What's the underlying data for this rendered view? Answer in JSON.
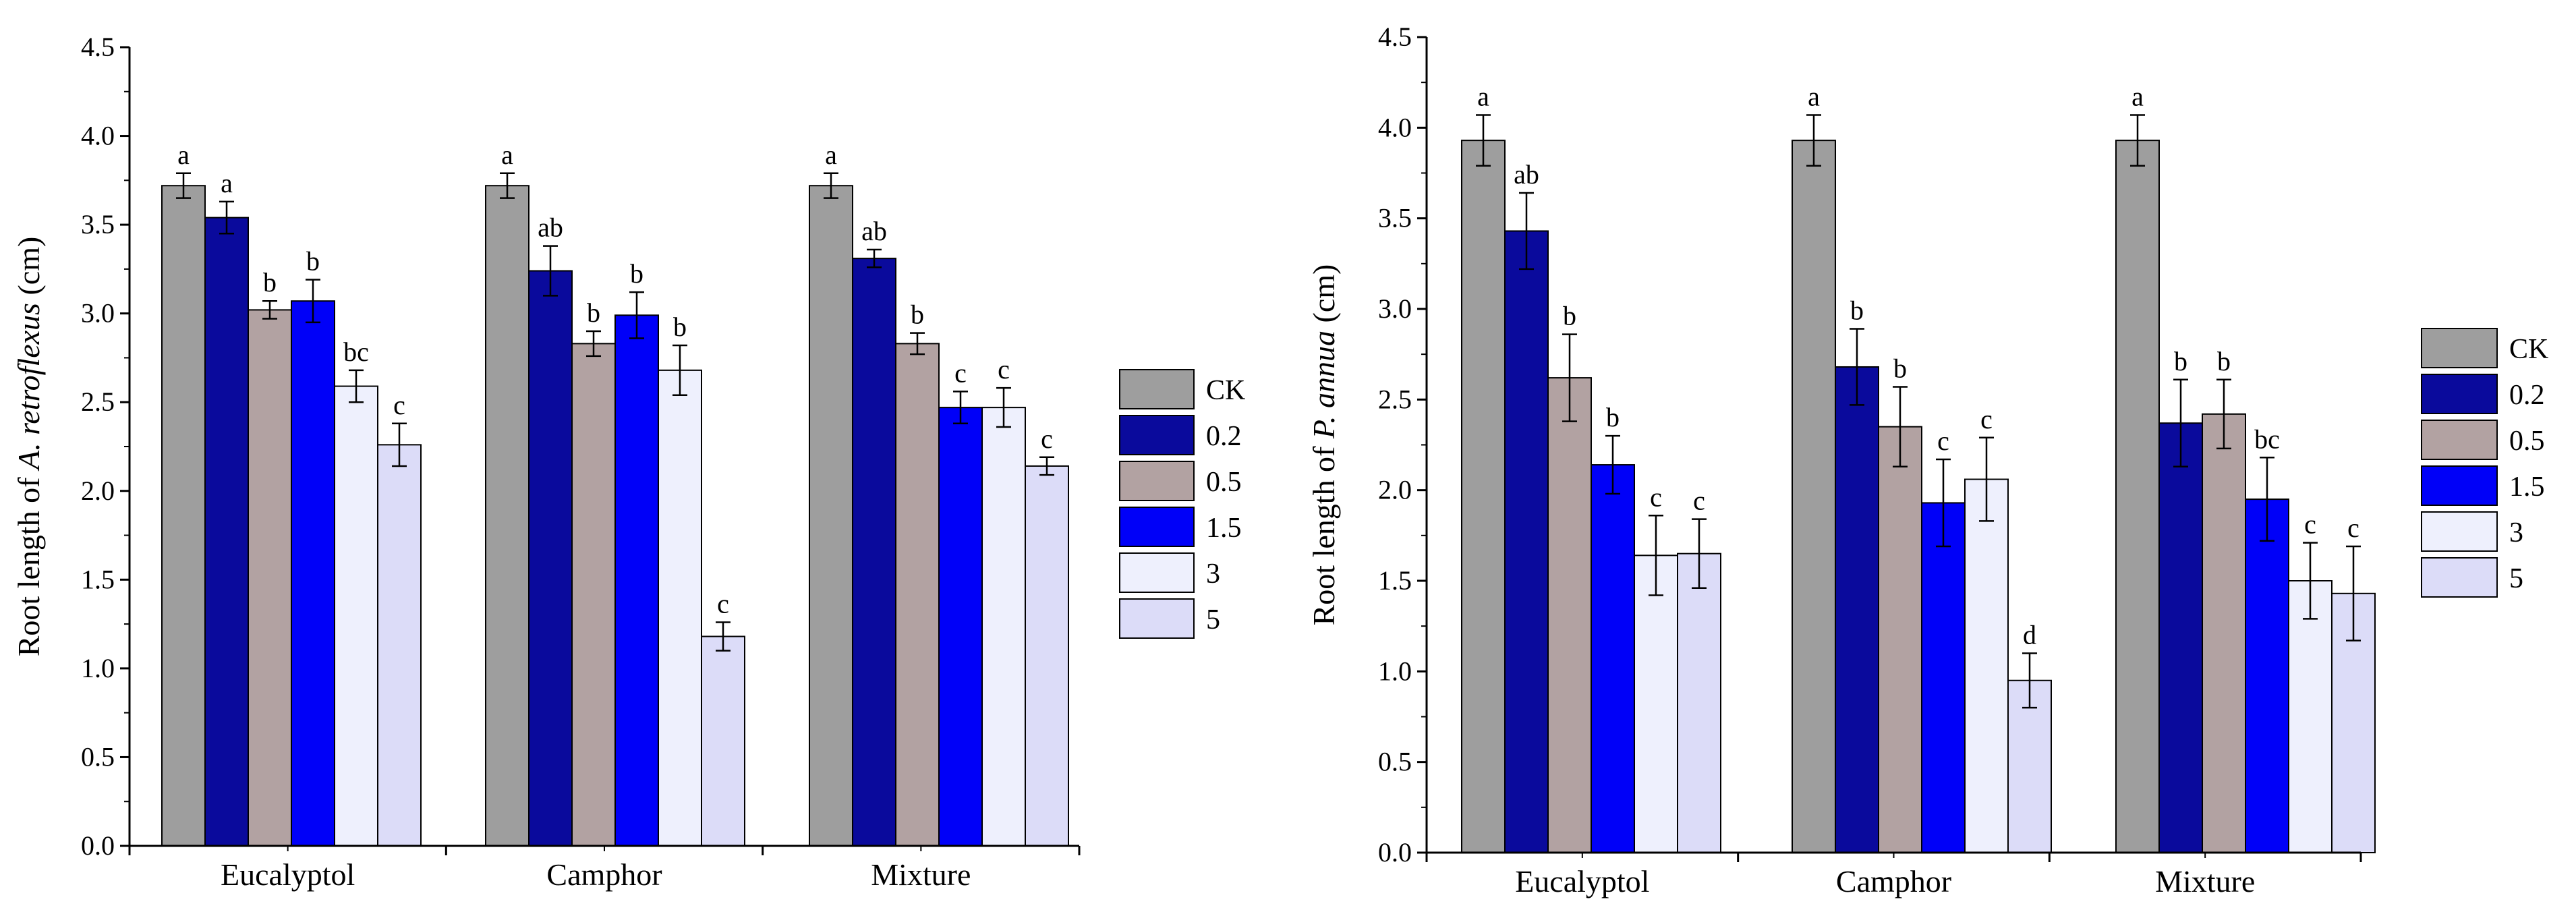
{
  "legend_entries": [
    "CK",
    "0.2",
    "0.5",
    "1.5",
    "3",
    "5"
  ],
  "colors": {
    "series": [
      "#9e9e9e",
      "#0a0a9c",
      "#b2a2a2",
      "#0000f8",
      "#eef0fd",
      "#dcdcf8"
    ],
    "axis": "#000000",
    "bar_stroke": "#000000"
  },
  "chart_data": [
    {
      "type": "bar",
      "title": "",
      "xlabel": "",
      "ylabel_parts": [
        "Root length of ",
        "A. retroflexus",
        " (cm)"
      ],
      "ylim": [
        0,
        4.5
      ],
      "yticks": [
        "0.0",
        "0.5",
        "1.0",
        "1.5",
        "2.0",
        "2.5",
        "3.0",
        "3.5",
        "4.0",
        "4.5"
      ],
      "categories": [
        "Eucalyptol",
        "Camphor",
        "Mixture"
      ],
      "series": [
        {
          "name": "CK",
          "values": [
            3.72,
            3.72,
            3.72
          ],
          "errors": [
            0.07,
            0.07,
            0.07
          ],
          "labels": [
            "a",
            "a",
            "a"
          ]
        },
        {
          "name": "0.2",
          "values": [
            3.54,
            3.24,
            3.31
          ],
          "errors": [
            0.09,
            0.14,
            0.05
          ],
          "labels": [
            "a",
            "ab",
            "ab"
          ]
        },
        {
          "name": "0.5",
          "values": [
            3.02,
            2.83,
            2.83
          ],
          "errors": [
            0.05,
            0.07,
            0.06
          ],
          "labels": [
            "b",
            "b",
            "b"
          ]
        },
        {
          "name": "1.5",
          "values": [
            3.07,
            2.99,
            2.47
          ],
          "errors": [
            0.12,
            0.13,
            0.09
          ],
          "labels": [
            "b",
            "b",
            "c"
          ]
        },
        {
          "name": "3",
          "values": [
            2.59,
            2.68,
            2.47
          ],
          "errors": [
            0.09,
            0.14,
            0.11
          ],
          "labels": [
            "bc",
            "b",
            "c"
          ]
        },
        {
          "name": "5",
          "values": [
            2.26,
            1.18,
            2.14
          ],
          "errors": [
            0.12,
            0.08,
            0.05
          ],
          "labels": [
            "c",
            "c",
            "c"
          ]
        }
      ]
    },
    {
      "type": "bar",
      "title": "",
      "xlabel": "",
      "ylabel_parts": [
        "Root length of ",
        "P. annua",
        " (cm)"
      ],
      "ylim": [
        0,
        4.5
      ],
      "yticks": [
        "0.0",
        "0.5",
        "1.0",
        "1.5",
        "2.0",
        "2.5",
        "3.0",
        "3.5",
        "4.0",
        "4.5"
      ],
      "categories": [
        "Eucalyptol",
        "Camphor",
        "Mixture"
      ],
      "series": [
        {
          "name": "CK",
          "values": [
            3.93,
            3.93,
            3.93
          ],
          "errors": [
            0.14,
            0.14,
            0.14
          ],
          "labels": [
            "a",
            "a",
            "a"
          ]
        },
        {
          "name": "0.2",
          "values": [
            3.43,
            2.68,
            2.37
          ],
          "errors": [
            0.21,
            0.21,
            0.24
          ],
          "labels": [
            "ab",
            "b",
            "b"
          ]
        },
        {
          "name": "0.5",
          "values": [
            2.62,
            2.35,
            2.42
          ],
          "errors": [
            0.24,
            0.22,
            0.19
          ],
          "labels": [
            "b",
            "b",
            "b"
          ]
        },
        {
          "name": "1.5",
          "values": [
            2.14,
            1.93,
            1.95
          ],
          "errors": [
            0.16,
            0.24,
            0.23
          ],
          "labels": [
            "b",
            "c",
            "bc"
          ]
        },
        {
          "name": "3",
          "values": [
            1.64,
            2.06,
            1.5
          ],
          "errors": [
            0.22,
            0.23,
            0.21
          ],
          "labels": [
            "c",
            "c",
            "c"
          ]
        },
        {
          "name": "5",
          "values": [
            1.65,
            0.95,
            1.43
          ],
          "errors": [
            0.19,
            0.15,
            0.26
          ],
          "labels": [
            "c",
            "d",
            "c"
          ]
        }
      ]
    }
  ]
}
